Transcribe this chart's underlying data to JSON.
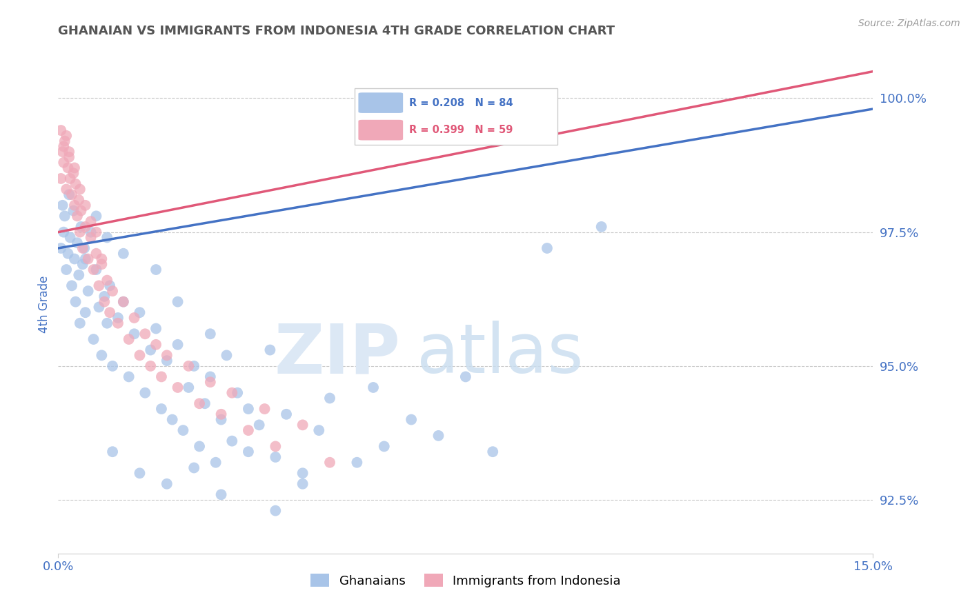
{
  "title": "GHANAIAN VS IMMIGRANTS FROM INDONESIA 4TH GRADE CORRELATION CHART",
  "source_text": "Source: ZipAtlas.com",
  "ylabel": "4th Grade",
  "xlim": [
    0.0,
    15.0
  ],
  "ylim": [
    91.5,
    100.8
  ],
  "yticks": [
    92.5,
    95.0,
    97.5,
    100.0
  ],
  "xticks": [
    0.0,
    15.0
  ],
  "xtick_labels": [
    "0.0%",
    "15.0%"
  ],
  "ytick_labels": [
    "92.5%",
    "95.0%",
    "97.5%",
    "100.0%"
  ],
  "blue_color": "#a8c4e8",
  "pink_color": "#f0a8b8",
  "blue_line_color": "#4472c4",
  "pink_line_color": "#e05878",
  "legend_blue_label": "R = 0.208   N = 84",
  "legend_pink_label": "R = 0.399   N = 59",
  "legend_label_ghanaians": "Ghanaians",
  "legend_label_immigrants": "Immigrants from Indonesia",
  "blue_R": 0.208,
  "blue_N": 84,
  "pink_R": 0.399,
  "pink_N": 59,
  "blue_scatter": [
    [
      0.05,
      97.2
    ],
    [
      0.08,
      98.0
    ],
    [
      0.1,
      97.5
    ],
    [
      0.12,
      97.8
    ],
    [
      0.15,
      96.8
    ],
    [
      0.18,
      97.1
    ],
    [
      0.2,
      98.2
    ],
    [
      0.22,
      97.4
    ],
    [
      0.25,
      96.5
    ],
    [
      0.28,
      97.9
    ],
    [
      0.3,
      97.0
    ],
    [
      0.32,
      96.2
    ],
    [
      0.35,
      97.3
    ],
    [
      0.38,
      96.7
    ],
    [
      0.4,
      95.8
    ],
    [
      0.42,
      97.6
    ],
    [
      0.45,
      96.9
    ],
    [
      0.48,
      97.2
    ],
    [
      0.5,
      96.0
    ],
    [
      0.55,
      96.4
    ],
    [
      0.6,
      97.5
    ],
    [
      0.65,
      95.5
    ],
    [
      0.7,
      96.8
    ],
    [
      0.75,
      96.1
    ],
    [
      0.8,
      95.2
    ],
    [
      0.85,
      96.3
    ],
    [
      0.9,
      95.8
    ],
    [
      0.95,
      96.5
    ],
    [
      1.0,
      95.0
    ],
    [
      1.1,
      95.9
    ],
    [
      1.2,
      96.2
    ],
    [
      1.3,
      94.8
    ],
    [
      1.4,
      95.6
    ],
    [
      1.5,
      96.0
    ],
    [
      1.6,
      94.5
    ],
    [
      1.7,
      95.3
    ],
    [
      1.8,
      95.7
    ],
    [
      1.9,
      94.2
    ],
    [
      2.0,
      95.1
    ],
    [
      2.1,
      94.0
    ],
    [
      2.2,
      95.4
    ],
    [
      2.3,
      93.8
    ],
    [
      2.4,
      94.6
    ],
    [
      2.5,
      95.0
    ],
    [
      2.6,
      93.5
    ],
    [
      2.7,
      94.3
    ],
    [
      2.8,
      94.8
    ],
    [
      2.9,
      93.2
    ],
    [
      3.0,
      94.0
    ],
    [
      3.1,
      95.2
    ],
    [
      3.2,
      93.6
    ],
    [
      3.3,
      94.5
    ],
    [
      3.5,
      94.2
    ],
    [
      3.7,
      93.9
    ],
    [
      3.9,
      95.3
    ],
    [
      4.0,
      93.3
    ],
    [
      4.2,
      94.1
    ],
    [
      4.5,
      93.0
    ],
    [
      4.8,
      93.8
    ],
    [
      5.0,
      94.4
    ],
    [
      5.5,
      93.2
    ],
    [
      5.8,
      94.6
    ],
    [
      6.0,
      93.5
    ],
    [
      6.5,
      94.0
    ],
    [
      7.0,
      93.7
    ],
    [
      7.5,
      94.8
    ],
    [
      8.0,
      93.4
    ],
    [
      9.0,
      97.2
    ],
    [
      10.0,
      97.6
    ],
    [
      1.0,
      93.4
    ],
    [
      1.5,
      93.0
    ],
    [
      2.0,
      92.8
    ],
    [
      2.5,
      93.1
    ],
    [
      3.0,
      92.6
    ],
    [
      3.5,
      93.4
    ],
    [
      4.0,
      92.3
    ],
    [
      4.5,
      92.8
    ],
    [
      0.5,
      97.0
    ],
    [
      0.7,
      97.8
    ],
    [
      0.9,
      97.4
    ],
    [
      1.2,
      97.1
    ],
    [
      1.8,
      96.8
    ],
    [
      2.2,
      96.2
    ],
    [
      2.8,
      95.6
    ]
  ],
  "pink_scatter": [
    [
      0.05,
      98.5
    ],
    [
      0.08,
      99.0
    ],
    [
      0.1,
      98.8
    ],
    [
      0.12,
      99.2
    ],
    [
      0.15,
      98.3
    ],
    [
      0.18,
      98.7
    ],
    [
      0.2,
      99.0
    ],
    [
      0.22,
      98.5
    ],
    [
      0.25,
      98.2
    ],
    [
      0.28,
      98.6
    ],
    [
      0.3,
      98.0
    ],
    [
      0.32,
      98.4
    ],
    [
      0.35,
      97.8
    ],
    [
      0.38,
      98.1
    ],
    [
      0.4,
      97.5
    ],
    [
      0.42,
      97.9
    ],
    [
      0.45,
      97.2
    ],
    [
      0.5,
      97.6
    ],
    [
      0.55,
      97.0
    ],
    [
      0.6,
      97.4
    ],
    [
      0.65,
      96.8
    ],
    [
      0.7,
      97.1
    ],
    [
      0.75,
      96.5
    ],
    [
      0.8,
      97.0
    ],
    [
      0.85,
      96.2
    ],
    [
      0.9,
      96.6
    ],
    [
      0.95,
      96.0
    ],
    [
      1.0,
      96.4
    ],
    [
      1.1,
      95.8
    ],
    [
      1.2,
      96.2
    ],
    [
      1.3,
      95.5
    ],
    [
      1.4,
      95.9
    ],
    [
      1.5,
      95.2
    ],
    [
      1.6,
      95.6
    ],
    [
      1.7,
      95.0
    ],
    [
      1.8,
      95.4
    ],
    [
      1.9,
      94.8
    ],
    [
      2.0,
      95.2
    ],
    [
      2.2,
      94.6
    ],
    [
      2.4,
      95.0
    ],
    [
      2.6,
      94.3
    ],
    [
      2.8,
      94.7
    ],
    [
      3.0,
      94.1
    ],
    [
      3.2,
      94.5
    ],
    [
      3.5,
      93.8
    ],
    [
      3.8,
      94.2
    ],
    [
      4.0,
      93.5
    ],
    [
      4.5,
      93.9
    ],
    [
      5.0,
      93.2
    ],
    [
      0.05,
      99.4
    ],
    [
      0.1,
      99.1
    ],
    [
      0.15,
      99.3
    ],
    [
      0.2,
      98.9
    ],
    [
      0.3,
      98.7
    ],
    [
      0.4,
      98.3
    ],
    [
      0.5,
      98.0
    ],
    [
      0.6,
      97.7
    ],
    [
      0.7,
      97.5
    ],
    [
      0.8,
      96.9
    ]
  ]
}
